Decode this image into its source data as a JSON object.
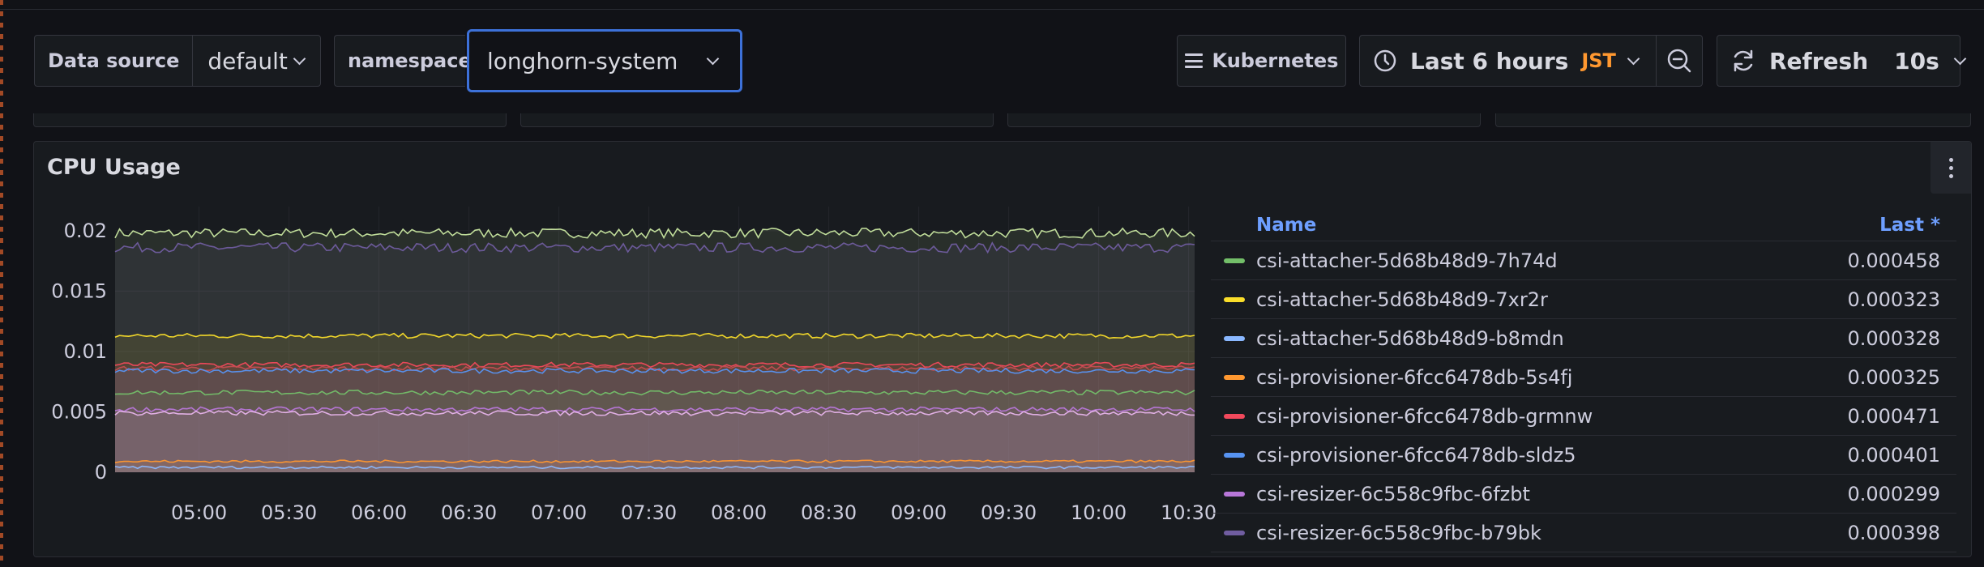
{
  "toolbar": {
    "datasource_label": "Data source",
    "datasource_value": "default",
    "namespace_label": "namespace",
    "namespace_value": "longhorn-system",
    "dashboard_link": "Kubernetes",
    "time_range": "Last 6 hours",
    "timezone": "JST",
    "refresh_label": "Refresh",
    "refresh_interval": "10s"
  },
  "panel": {
    "title": "CPU Usage",
    "legend_headers": {
      "name": "Name",
      "last": "Last *"
    }
  },
  "colors": {
    "accent": "#6e9fff",
    "focus_border": "#3d71d9",
    "timezone": "#ff9830"
  },
  "chart_data": {
    "type": "line",
    "title": "CPU Usage",
    "x": [
      "05:00",
      "05:30",
      "06:00",
      "06:30",
      "07:00",
      "07:30",
      "08:00",
      "08:30",
      "09:00",
      "09:30",
      "10:00",
      "10:30"
    ],
    "xlim": [
      "04:32",
      "10:32"
    ],
    "ylim": [
      0,
      0.022
    ],
    "yticks": [
      "0",
      "0.005",
      "0.01",
      "0.015",
      "0.02"
    ],
    "grid": true,
    "legend_position": "right",
    "series": [
      {
        "name": "csi-attacher-5d68b48d9-7h74d",
        "color": "#73bf69",
        "level": 0.0066,
        "noise": 0.0002,
        "last": "0.000458"
      },
      {
        "name": "csi-attacher-5d68b48d9-7xr2r",
        "color": "#fade2a",
        "level": 0.0113,
        "noise": 0.0002,
        "last": "0.000323"
      },
      {
        "name": "csi-attacher-5d68b48d9-b8mdn",
        "color": "#8ab8ff",
        "level": 0.0004,
        "noise": 0.0001,
        "last": "0.000328"
      },
      {
        "name": "csi-provisioner-6fcc6478db-5s4fj",
        "color": "#ff9830",
        "level": 0.0009,
        "noise": 0.0001,
        "last": "0.000325"
      },
      {
        "name": "csi-provisioner-6fcc6478db-grmnw",
        "color": "#f2495c",
        "level": 0.0089,
        "noise": 0.0002,
        "last": "0.000471"
      },
      {
        "name": "csi-provisioner-6fcc6478db-sldz5",
        "color": "#5794f2",
        "level": 0.0084,
        "noise": 0.0002,
        "last": "0.000401"
      },
      {
        "name": "csi-resizer-6c558c9fbc-6fzbt",
        "color": "#b877d9",
        "level": 0.0052,
        "noise": 0.0002,
        "last": "0.000299"
      },
      {
        "name": "csi-resizer-6c558c9fbc-b79bk",
        "color": "#705da0",
        "level": 0.0186,
        "noise": 0.0004,
        "last": "0.000398"
      }
    ],
    "extra_lines": [
      {
        "color": "#c8e6a0",
        "level": 0.0198,
        "noise": 0.0004
      },
      {
        "color": "#e6b3ea",
        "level": 0.0049,
        "noise": 0.0002
      },
      {
        "color": "#c44e52",
        "level": 0.0086,
        "noise": 0.0002
      }
    ]
  }
}
